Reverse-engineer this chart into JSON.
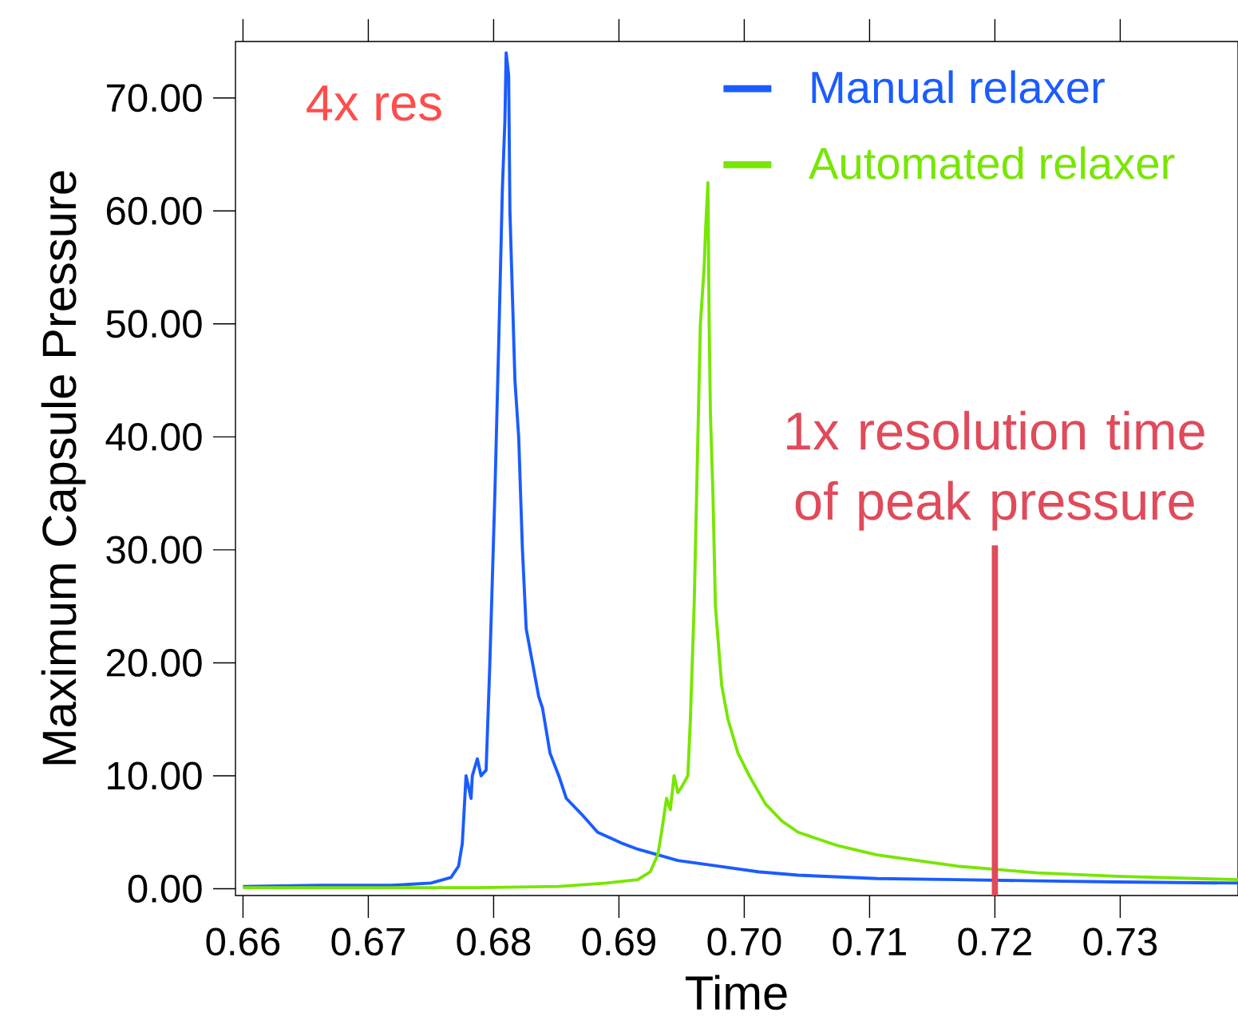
{
  "chart_data": {
    "type": "line",
    "xlabel": "Time",
    "ylabel": "Maximum Capsule Pressure",
    "xlim": [
      0.6594,
      0.7394
    ],
    "ylim": [
      -0.6,
      75
    ],
    "xticks": [
      0.66,
      0.67,
      0.68,
      0.69,
      {
        "value": 0.7,
        "label": "0.70"
      },
      0.71,
      0.72,
      0.73
    ],
    "yticks": [
      {
        "value": 0,
        "label": "0.00"
      },
      {
        "value": 10,
        "label": "10.00"
      },
      {
        "value": 20,
        "label": "20.00"
      },
      {
        "value": 30,
        "label": "30.00"
      },
      {
        "value": 40,
        "label": "40.00"
      },
      {
        "value": 50,
        "label": "50.00"
      },
      {
        "value": 60,
        "label": "60.00"
      },
      {
        "value": 70,
        "label": "70.00"
      }
    ],
    "legend": "top right",
    "annotations": [
      "4x res"
    ],
    "ref_lines": [
      {
        "axis": "x",
        "value": 0.72,
        "label": "1x resolution time of peak pressure",
        "color": "#e04a5a"
      }
    ],
    "series": [
      {
        "name": "Manual relaxer",
        "color": "#1a5cff",
        "x": [
          0.66,
          0.6661,
          0.6718,
          0.675,
          0.6766,
          0.6772,
          0.6775,
          0.6778,
          0.6782,
          0.6783,
          0.6787,
          0.679,
          0.6794,
          0.6797,
          0.6801,
          0.6804,
          0.6807,
          0.6809,
          0.681,
          0.6812,
          0.6813,
          0.6817,
          0.682,
          0.6823,
          0.6826,
          0.6831,
          0.6836,
          0.6839,
          0.6845,
          0.6852,
          0.6858,
          0.6871,
          0.6883,
          0.6903,
          0.6915,
          0.6947,
          0.6979,
          0.7011,
          0.7043,
          0.7106,
          0.717,
          0.7234,
          0.7297,
          0.7394
        ],
        "values": [
          0.2,
          0.3,
          0.3,
          0.5,
          1,
          2,
          4,
          10,
          8,
          10,
          11.5,
          10,
          10.5,
          20,
          35,
          48,
          62,
          68,
          74,
          72,
          60,
          45,
          40,
          30,
          23,
          20,
          17,
          16,
          12,
          10,
          8,
          6.5,
          5,
          4,
          3.5,
          2.5,
          2,
          1.5,
          1.2,
          0.9,
          0.8,
          0.7,
          0.6,
          0.5
        ]
      },
      {
        "name": "Automated relaxer",
        "color": "#77e600",
        "x": [
          0.66,
          0.6788,
          0.6852,
          0.689,
          0.6915,
          0.6925,
          0.6931,
          0.6934,
          0.6938,
          0.6941,
          0.6944,
          0.6947,
          0.695,
          0.6955,
          0.6957,
          0.696,
          0.6963,
          0.6965,
          0.6968,
          0.6969,
          0.6971,
          0.6972,
          0.6973,
          0.6975,
          0.6977,
          0.6982,
          0.6987,
          0.6995,
          0.7004,
          0.7017,
          0.703,
          0.7043,
          0.7075,
          0.7106,
          0.7138,
          0.717,
          0.7202,
          0.7234,
          0.7297,
          0.7394
        ],
        "values": [
          0.1,
          0.1,
          0.2,
          0.5,
          0.8,
          1.5,
          3,
          5,
          8,
          7,
          10,
          8.5,
          9,
          10,
          15,
          25,
          40,
          50,
          55,
          58,
          62.5,
          50,
          42,
          35,
          25,
          18,
          15,
          12,
          10,
          7.5,
          6,
          5,
          3.8,
          3,
          2.5,
          2,
          1.7,
          1.4,
          1.1,
          0.8
        ]
      }
    ]
  }
}
